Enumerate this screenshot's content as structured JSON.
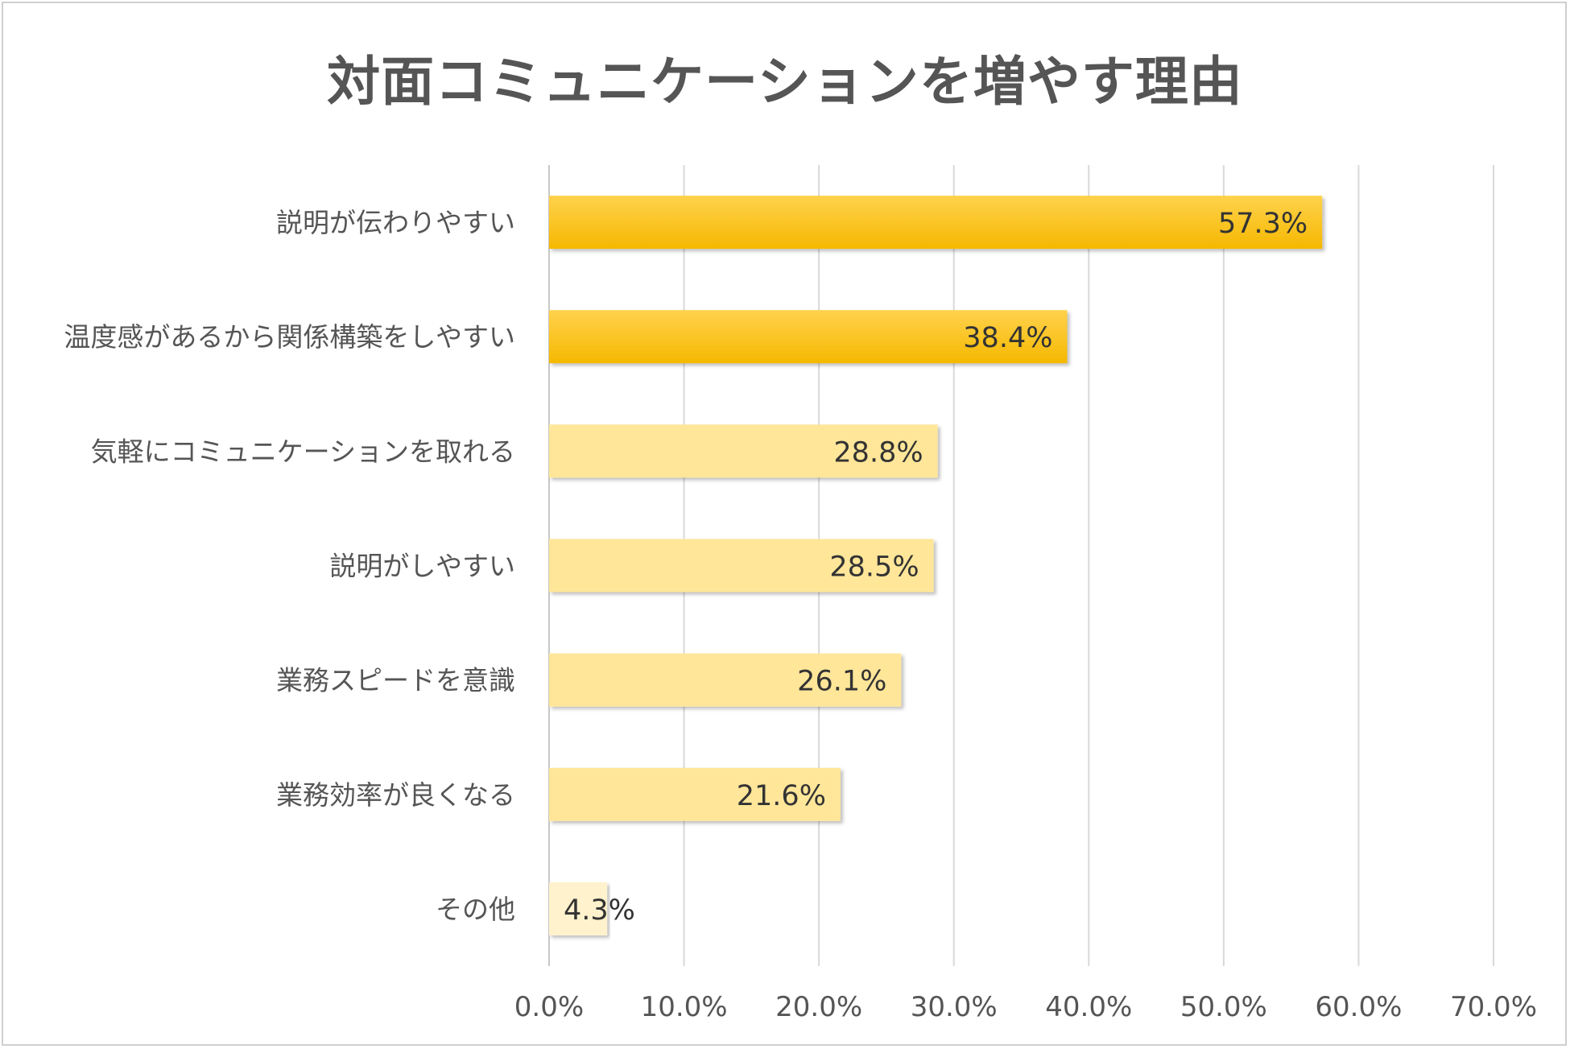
{
  "chart_data": {
    "type": "bar",
    "orientation": "horizontal",
    "title": "対面コミュニケーションを増やす理由",
    "categories": [
      "説明が伝わりやすい",
      "温度感があるから関係構築をしやすい",
      "気軽にコミュニケーションを取れる",
      "説明がしやすい",
      "業務スピードを意識",
      "業務効率が良くなる",
      "その他"
    ],
    "values": [
      57.3,
      38.4,
      28.8,
      28.5,
      26.1,
      21.6,
      4.3
    ],
    "value_labels": [
      "57.3%",
      "38.4%",
      "28.8%",
      "28.5%",
      "26.1%",
      "21.6%",
      "4.3%"
    ],
    "xlim": [
      0,
      70
    ],
    "xticks": [
      0,
      10,
      20,
      30,
      40,
      50,
      60,
      70
    ],
    "xtick_labels": [
      "0.0%",
      "10.0%",
      "20.0%",
      "30.0%",
      "40.0%",
      "50.0%",
      "60.0%",
      "70.0%"
    ],
    "grid": true,
    "xlabel": "",
    "ylabel": "",
    "colors": {
      "highlight": "#FFC000",
      "highlight_top": "#FFD24D",
      "normal": "#FFE699",
      "light": "#FFF2CC",
      "grid": "#d9d9d9",
      "text": "#555555"
    },
    "bar_styles": [
      "highlight",
      "highlight",
      "normal",
      "normal",
      "normal",
      "normal",
      "light"
    ]
  }
}
